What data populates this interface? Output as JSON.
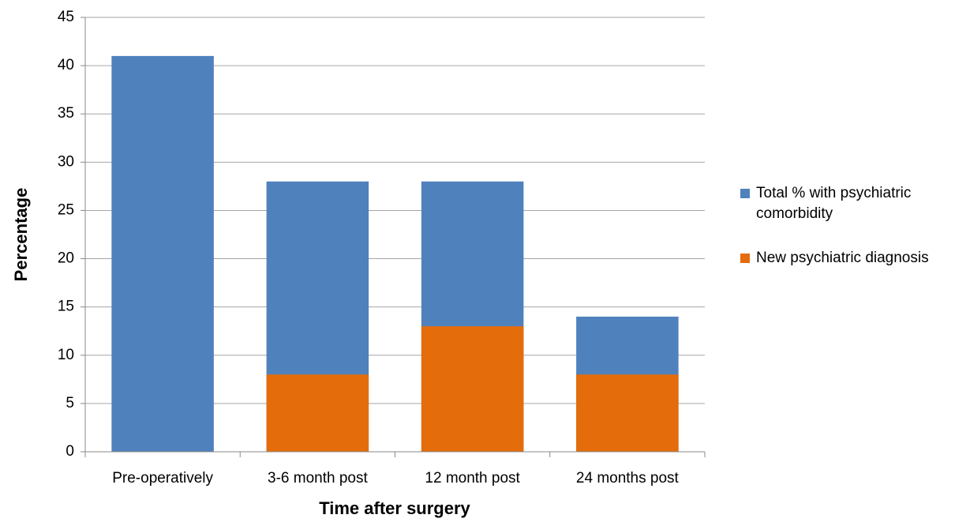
{
  "chart_data": {
    "type": "bar",
    "categories": [
      "Pre-operatively",
      "3-6 month post",
      "12 month post",
      "24 months post"
    ],
    "series": [
      {
        "name": "Total % with psychiatric comorbidity",
        "color": "#4f81bd",
        "values": [
          41,
          28,
          28,
          14
        ]
      },
      {
        "name": "New psychiatric diagnosis",
        "color": "#e46c0a",
        "values": [
          null,
          8,
          13,
          8
        ]
      }
    ],
    "x_label": "Time after surgery",
    "y_label": "Percentage",
    "ylim": [
      0,
      45
    ],
    "yticks": [
      0,
      5,
      10,
      15,
      20,
      25,
      30,
      35,
      40,
      45
    ],
    "grid": true,
    "legend": "right"
  }
}
